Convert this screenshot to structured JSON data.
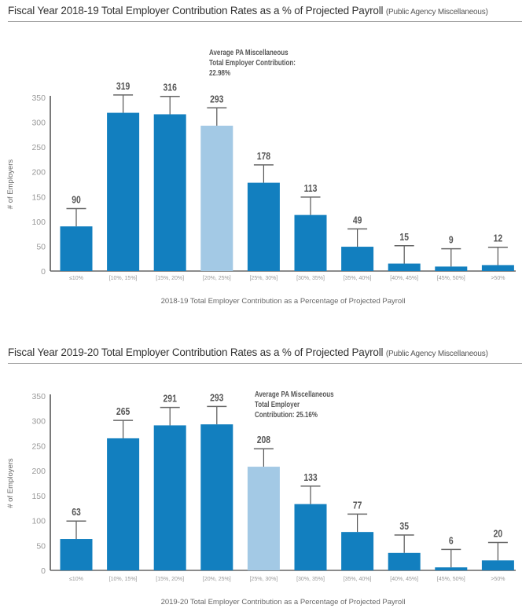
{
  "chart_data": [
    {
      "type": "bar",
      "title": "Fiscal Year 2018-19 Total Employer Contribution Rates as a % of Projected Payroll",
      "subtitle": "(Public Agency Miscellaneous)",
      "xlabel": "2018-19 Total Employer Contribution as a Percentage of Projected Payroll",
      "ylabel": "# of Employers",
      "ylim": [
        0,
        350
      ],
      "yticks": [
        "0",
        "50",
        "100",
        "150",
        "200",
        "250",
        "300",
        "350"
      ],
      "categories": [
        "≤10%",
        "[10%, 15%]",
        "[15%, 20%]",
        "[20%, 25%]",
        "[25%, 30%]",
        "[30%, 35%]",
        "[35%, 40%]",
        "[40%, 45%]",
        "[45%, 50%]",
        ">50%"
      ],
      "values": [
        90,
        319,
        316,
        293,
        178,
        113,
        49,
        15,
        9,
        12
      ],
      "whisker_top": [
        126,
        355,
        352,
        329,
        214,
        149,
        85,
        51,
        45,
        48
      ],
      "highlight_index": 3,
      "annotation": [
        "Average PA Miscellaneous",
        "Total Employer Contribution:",
        "22.98%"
      ],
      "grid": false
    },
    {
      "type": "bar",
      "title": "Fiscal Year 2019-20 Total Employer Contribution Rates as a % of Projected Payroll",
      "subtitle": "(Public Agency Miscellaneous)",
      "xlabel": "2019-20 Total Employer Contribution as a Percentage of Projected Payroll",
      "ylabel": "# of Employers",
      "ylim": [
        0,
        350
      ],
      "yticks": [
        "0",
        "50",
        "100",
        "150",
        "200",
        "250",
        "300",
        "350"
      ],
      "categories": [
        "≤10%",
        "[10%, 15%]",
        "[15%, 20%]",
        "[20%, 25%]",
        "[25%, 30%]",
        "[30%, 35%]",
        "[35%, 40%]",
        "[40%, 45%]",
        "[45%, 50%]",
        ">50%"
      ],
      "values": [
        63,
        265,
        291,
        293,
        208,
        133,
        77,
        35,
        6,
        20
      ],
      "whisker_top": [
        99,
        301,
        327,
        329,
        244,
        169,
        113,
        71,
        42,
        56
      ],
      "highlight_index": 4,
      "annotation": [
        "Average PA Miscellaneous",
        "Total Employer",
        "Contribution: 25.16%"
      ],
      "grid": false
    }
  ],
  "colors": {
    "bar": "#127fbf",
    "highlight": "#a3c9e5",
    "axis": "#333333",
    "whisker": "#555555"
  }
}
